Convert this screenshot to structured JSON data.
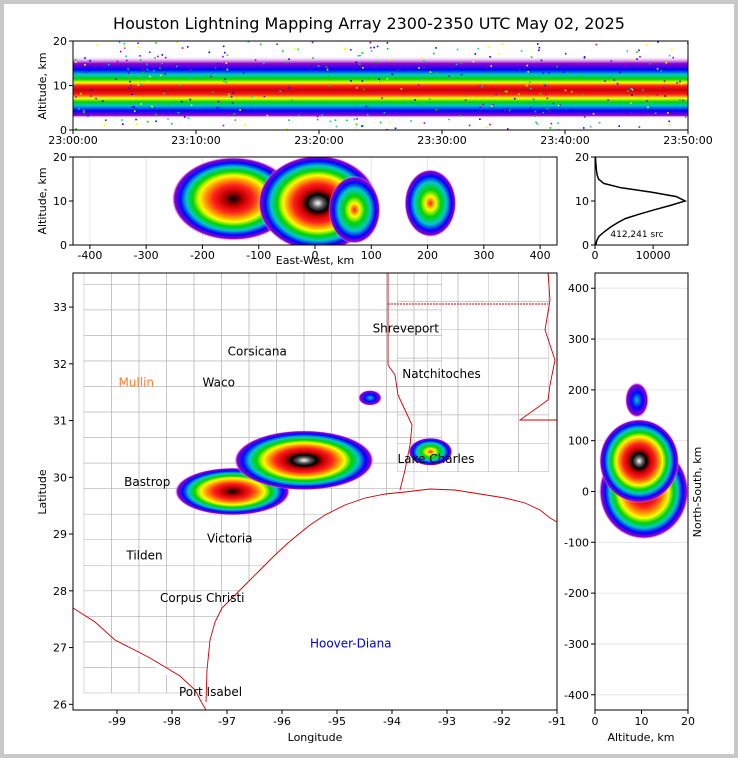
{
  "title": "Houston Lightning Mapping Array 2300-2350 UTC May 02, 2025",
  "colors": {
    "state_borders": "#cc0000",
    "county_lines": "#b4b4b4",
    "frame_border": "#c8c8c8"
  },
  "chart_data": [
    {
      "id": "time-height",
      "type": "heatmap",
      "xlabel": "",
      "ylabel": "Altitude, km",
      "x_ticks": [
        "23:00:00",
        "23:10:00",
        "23:20:00",
        "23:30:00",
        "23:40:00",
        "23:50:00"
      ],
      "y_ticks": [
        0,
        10,
        20
      ],
      "ylim": [
        0,
        20
      ],
      "xlim": [
        "23:00:00",
        "23:50:00"
      ]
    },
    {
      "id": "east-west-altitude",
      "type": "heatmap",
      "xlabel": "East-West, km",
      "ylabel": "Altitude, km",
      "x_ticks": [
        -400,
        -300,
        -200,
        -100,
        0,
        100,
        200,
        300,
        400
      ],
      "y_ticks": [
        0,
        10,
        20
      ],
      "xlim": [
        -430,
        430
      ],
      "ylim": [
        0,
        20
      ],
      "clusters": [
        {
          "x": -145,
          "y": 10.5,
          "intensity": "high"
        },
        {
          "x": 5,
          "y": 9.5,
          "intensity": "very high"
        },
        {
          "x": 70,
          "y": 8,
          "intensity": "medium"
        },
        {
          "x": 205,
          "y": 9.5,
          "intensity": "medium"
        }
      ]
    },
    {
      "id": "altitude-histogram",
      "type": "line",
      "x_ticks": [
        0,
        10000
      ],
      "y_ticks": [
        0,
        10,
        20
      ],
      "xlim": [
        0,
        16000
      ],
      "ylim": [
        0,
        20
      ],
      "annotation": "412,241 src",
      "points": [
        {
          "alt": 0,
          "count": 150
        },
        {
          "alt": 1,
          "count": 300
        },
        {
          "alt": 2,
          "count": 700
        },
        {
          "alt": 3,
          "count": 1600
        },
        {
          "alt": 4,
          "count": 2600
        },
        {
          "alt": 5,
          "count": 3800
        },
        {
          "alt": 6,
          "count": 5200
        },
        {
          "alt": 7,
          "count": 7600
        },
        {
          "alt": 8,
          "count": 10200
        },
        {
          "alt": 9,
          "count": 13000
        },
        {
          "alt": 10,
          "count": 15500
        },
        {
          "alt": 11,
          "count": 14000
        },
        {
          "alt": 12,
          "count": 9800
        },
        {
          "alt": 13,
          "count": 4500
        },
        {
          "alt": 14,
          "count": 1500
        },
        {
          "alt": 15,
          "count": 600
        },
        {
          "alt": 16,
          "count": 350
        },
        {
          "alt": 17,
          "count": 250
        },
        {
          "alt": 18,
          "count": 180
        },
        {
          "alt": 19,
          "count": 120
        },
        {
          "alt": 20,
          "count": 80
        }
      ]
    },
    {
      "id": "plan-view",
      "type": "heatmap",
      "xlabel": "Longitude",
      "ylabel": "Latitude",
      "x_ticks": [
        -99,
        -98,
        -97,
        -96,
        -95,
        -94,
        -93,
        -92,
        -91
      ],
      "y_ticks": [
        26,
        27,
        28,
        29,
        30,
        31,
        32,
        33
      ],
      "xlim": [
        -99.8,
        -91
      ],
      "ylim": [
        25.9,
        33.6
      ],
      "clusters": [
        {
          "lon": -96.9,
          "lat": 29.75,
          "intensity": "high"
        },
        {
          "lon": -95.6,
          "lat": 30.3,
          "intensity": "very high"
        },
        {
          "lon": -93.3,
          "lat": 30.45,
          "intensity": "medium"
        },
        {
          "lon": -94.4,
          "lat": 31.4,
          "intensity": "low"
        }
      ],
      "cities": [
        {
          "name": "Shreveport",
          "lon": -93.75,
          "lat": 32.55,
          "color": "#000000"
        },
        {
          "name": "Corsicana",
          "lon": -96.45,
          "lat": 32.15,
          "color": "#000000"
        },
        {
          "name": "Natchitoches",
          "lon": -93.1,
          "lat": 31.75,
          "color": "#000000"
        },
        {
          "name": "Mullin",
          "lon": -98.65,
          "lat": 31.6,
          "color": "#ff7f2a"
        },
        {
          "name": "Waco",
          "lon": -97.15,
          "lat": 31.6,
          "color": "#000000"
        },
        {
          "name": "Lake Charles",
          "lon": -93.2,
          "lat": 30.25,
          "color": "#000000"
        },
        {
          "name": "Bastrop",
          "lon": -98.45,
          "lat": 29.85,
          "color": "#000000"
        },
        {
          "name": "Victoria",
          "lon": -96.95,
          "lat": 28.85,
          "color": "#000000"
        },
        {
          "name": "Tilden",
          "lon": -98.5,
          "lat": 28.55,
          "color": "#000000"
        },
        {
          "name": "Corpus Christi",
          "lon": -97.45,
          "lat": 27.8,
          "color": "#000000"
        },
        {
          "name": "Hoover-Diana",
          "lon": -94.75,
          "lat": 27.0,
          "color": "#0000cc"
        },
        {
          "name": "Port Isabel",
          "lon": -97.3,
          "lat": 26.15,
          "color": "#000000"
        }
      ]
    },
    {
      "id": "north-south-altitude",
      "type": "heatmap",
      "xlabel": "Altitude, km",
      "ylabel": "North-South, km",
      "x_ticks": [
        0,
        10,
        20
      ],
      "y_ticks": [
        -400,
        -300,
        -200,
        -100,
        0,
        100,
        200,
        300,
        400
      ],
      "xlim": [
        0,
        20
      ],
      "ylim": [
        -430,
        430
      ],
      "clusters": [
        {
          "alt": 10.5,
          "y": 0,
          "intensity": "high"
        },
        {
          "alt": 9.5,
          "y": 60,
          "intensity": "very high"
        },
        {
          "alt": 9,
          "y": 180,
          "intensity": "low"
        }
      ]
    }
  ]
}
